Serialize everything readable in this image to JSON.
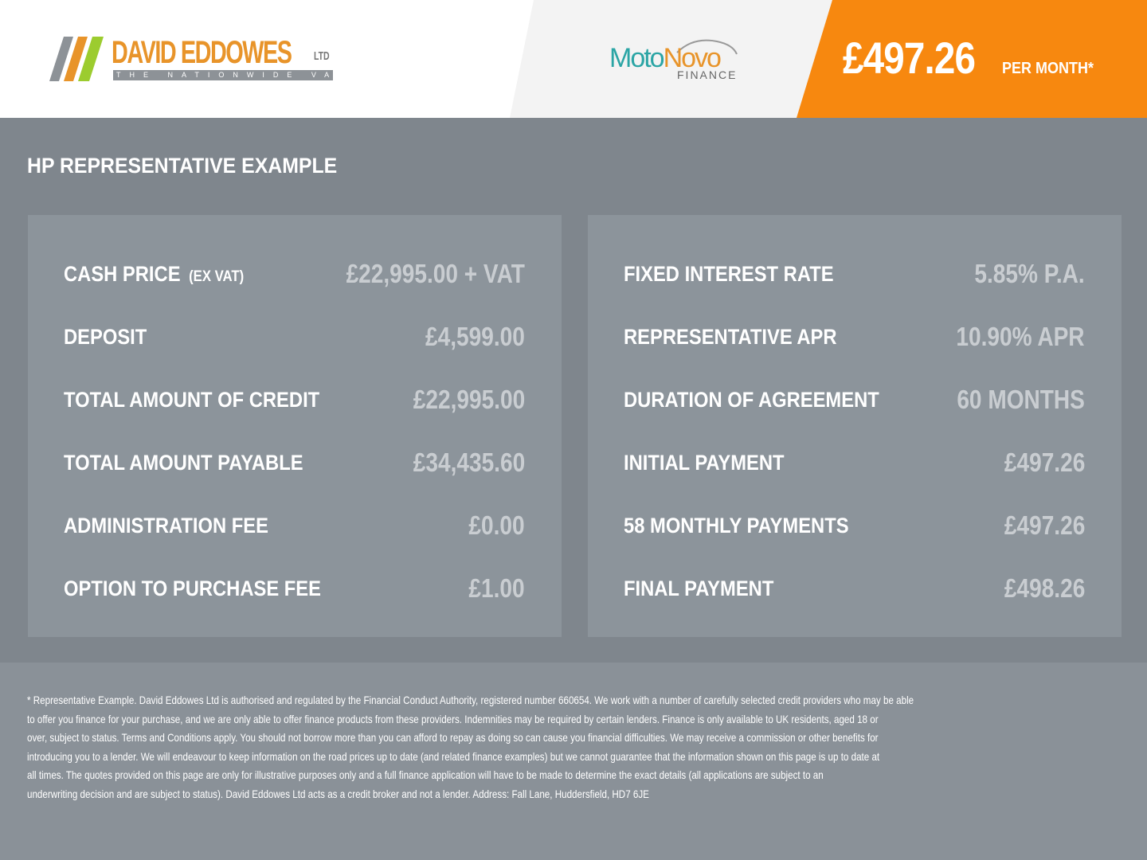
{
  "header": {
    "dealer_logo": {
      "name": "DAVID EDDOWES",
      "suffix": "LTD",
      "tagline": "THE NATIONWIDE VAN CENTRE"
    },
    "finance_logo": {
      "moto": "Moto",
      "novo": "Novo",
      "finance": "FINANCE"
    },
    "monthly_price": "£497.26",
    "per_month_label": "PER MONTH*",
    "colors": {
      "accent": "#f7880f",
      "band": "#7f868d",
      "panel": "#8c949b"
    }
  },
  "section_title": "HP REPRESENTATIVE EXAMPLE",
  "left_panel": [
    {
      "label": "CASH PRICE",
      "sublabel": "(EX VAT)",
      "value": "£22,995.00 + VAT"
    },
    {
      "label": "DEPOSIT",
      "value": "£4,599.00"
    },
    {
      "label": "TOTAL AMOUNT OF CREDIT",
      "value": "£22,995.00"
    },
    {
      "label": "TOTAL AMOUNT PAYABLE",
      "value": "£34,435.60"
    },
    {
      "label": "ADMINISTRATION FEE",
      "value": "£0.00"
    },
    {
      "label": "OPTION TO PURCHASE FEE",
      "value": "£1.00"
    }
  ],
  "right_panel": [
    {
      "label": "FIXED INTEREST RATE",
      "value": "5.85% P.A."
    },
    {
      "label": "REPRESENTATIVE APR",
      "value": "10.90% APR"
    },
    {
      "label": "DURATION OF AGREEMENT",
      "value": "60 MONTHS"
    },
    {
      "label": "INITIAL PAYMENT",
      "value": "£497.26"
    },
    {
      "label": "58 MONTHLY PAYMENTS",
      "value": "£497.26"
    },
    {
      "label": "FINAL PAYMENT",
      "value": "£498.26"
    }
  ],
  "disclaimer_lines": [
    "* Representative Example. David Eddowes Ltd is authorised and regulated by the Financial Conduct Authority, registered number 660654. We work with a number of carefully selected credit providers who may be able",
    "to offer you finance for your purchase, and we are only able to offer finance products from these providers. Indemnities may be required by certain lenders. Finance is only available to UK residents, aged 18 or",
    "over, subject to status. Terms and Conditions apply. You should not borrow more than you can afford to repay as doing so can cause you financial difficulties. We may receive a commission or other benefits for",
    "introducing you to a lender. We will endeavour to keep information on the road prices up to date (and related finance examples) but we cannot guarantee that the information shown on this page is up to date at",
    "all times. The quotes provided on this page are only for illustrative purposes only and a full finance application will have to be made to determine the exact details (all applications are subject to an",
    "underwriting decision and are subject to status). David Eddowes Ltd acts as a credit broker and not a lender. Address: Fall Lane, Huddersfield, HD7 6JE"
  ]
}
